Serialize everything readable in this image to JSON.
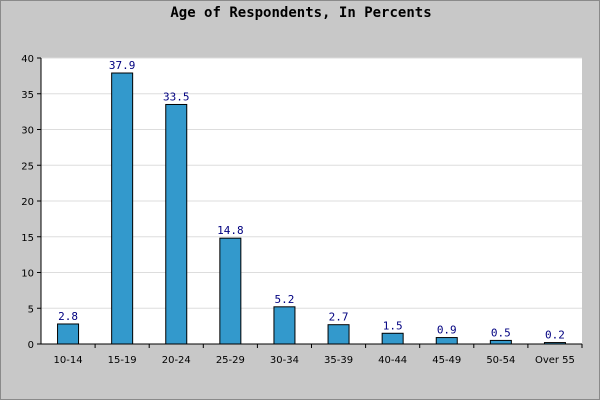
{
  "chart_data": {
    "type": "bar",
    "title": "Age of Respondents, In Percents",
    "xlabel": "",
    "ylabel": "",
    "categories": [
      "10-14",
      "15-19",
      "20-24",
      "25-29",
      "30-34",
      "35-39",
      "40-44",
      "45-49",
      "50-54",
      "Over 55"
    ],
    "values": [
      2.8,
      37.9,
      33.5,
      14.8,
      5.2,
      2.7,
      1.5,
      0.9,
      0.5,
      0.2
    ],
    "data_labels": [
      "2.8",
      "37.9",
      "33.5",
      "14.8",
      "5.2",
      "2.7",
      "1.5",
      "0.9",
      "0.5",
      "0.2"
    ],
    "ylim": [
      0,
      40
    ],
    "yticks": [
      0,
      5,
      10,
      15,
      20,
      25,
      30,
      35,
      40
    ],
    "grid": true,
    "legend": "none",
    "colors": {
      "bar": "#3399cc",
      "bar_border": "#000000",
      "background": "#c8c8c8",
      "plot_background": "#ffffff",
      "grid": "#dddddd",
      "data_label": "#000080"
    }
  }
}
